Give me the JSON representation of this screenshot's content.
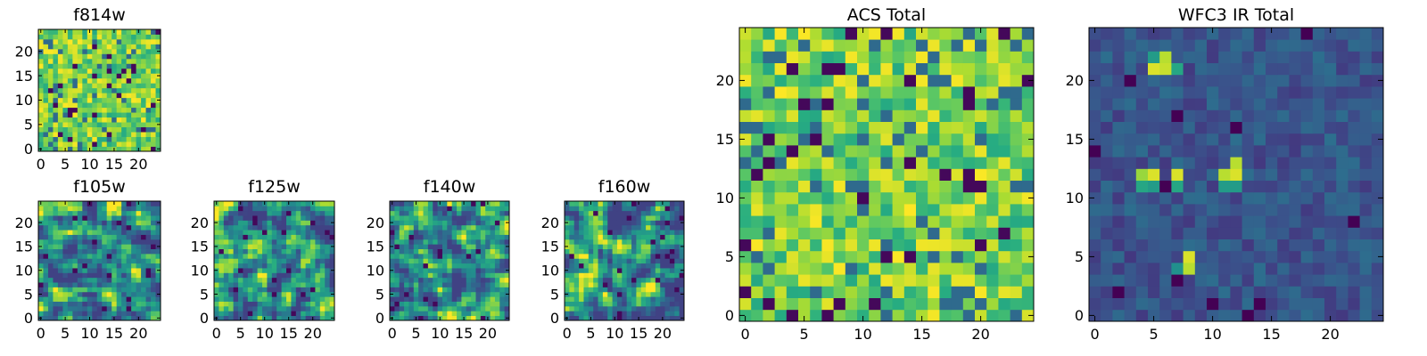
{
  "chart_data": [
    {
      "type": "heatmap",
      "title": "f814w",
      "colormap": "viridis",
      "grid": false,
      "xlim": [
        -0.5,
        24.5
      ],
      "ylim": [
        -0.5,
        24.5
      ],
      "xticks": [
        0,
        5,
        10,
        15,
        20
      ],
      "yticks": [
        0,
        5,
        10,
        15,
        20
      ],
      "size": 25,
      "seed": 11,
      "value_range": [
        0,
        1
      ],
      "texture": "pixel-noise"
    },
    {
      "type": "heatmap",
      "title": "f105w",
      "colormap": "viridis",
      "grid": false,
      "xlim": [
        -0.5,
        24.5
      ],
      "ylim": [
        -0.5,
        24.5
      ],
      "xticks": [
        0,
        5,
        10,
        15,
        20
      ],
      "yticks": [
        0,
        5,
        10,
        15,
        20
      ],
      "size": 25,
      "seed": 23,
      "value_range": [
        0,
        1
      ],
      "texture": "smooth-noise"
    },
    {
      "type": "heatmap",
      "title": "f125w",
      "colormap": "viridis",
      "grid": false,
      "xlim": [
        -0.5,
        24.5
      ],
      "ylim": [
        -0.5,
        24.5
      ],
      "xticks": [
        0,
        5,
        10,
        15,
        20
      ],
      "yticks": [
        0,
        5,
        10,
        15,
        20
      ],
      "size": 25,
      "seed": 37,
      "value_range": [
        0,
        1
      ],
      "texture": "smooth-noise"
    },
    {
      "type": "heatmap",
      "title": "f140w",
      "colormap": "viridis",
      "grid": false,
      "xlim": [
        -0.5,
        24.5
      ],
      "ylim": [
        -0.5,
        24.5
      ],
      "xticks": [
        0,
        5,
        10,
        15,
        20
      ],
      "yticks": [
        0,
        5,
        10,
        15,
        20
      ],
      "size": 25,
      "seed": 41,
      "value_range": [
        0,
        1
      ],
      "texture": "smooth-noise"
    },
    {
      "type": "heatmap",
      "title": "f160w",
      "colormap": "viridis",
      "grid": false,
      "xlim": [
        -0.5,
        24.5
      ],
      "ylim": [
        -0.5,
        24.5
      ],
      "xticks": [
        0,
        5,
        10,
        15,
        20
      ],
      "yticks": [
        0,
        5,
        10,
        15,
        20
      ],
      "size": 25,
      "seed": 53,
      "value_range": [
        0,
        1
      ],
      "texture": "smooth-noise"
    },
    {
      "type": "heatmap",
      "title": "ACS Total",
      "colormap": "viridis",
      "grid": false,
      "xlim": [
        -0.5,
        24.5
      ],
      "ylim": [
        -0.5,
        24.5
      ],
      "xticks": [
        0,
        5,
        10,
        15,
        20
      ],
      "yticks": [
        0,
        5,
        10,
        15,
        20
      ],
      "size": 25,
      "seed": 67,
      "value_range": [
        0,
        1
      ],
      "texture": "pixel-noise"
    },
    {
      "type": "heatmap",
      "title": "WFC3 IR Total",
      "colormap": "viridis",
      "grid": false,
      "xlim": [
        -0.5,
        24.5
      ],
      "ylim": [
        -0.5,
        24.5
      ],
      "xticks": [
        0,
        5,
        10,
        15,
        20
      ],
      "yticks": [
        0,
        5,
        10,
        15,
        20
      ],
      "size": 25,
      "seed": 79,
      "value_range": [
        0,
        1
      ],
      "texture": "dark-background",
      "bright_pixels": [
        {
          "x": 5,
          "y": 21,
          "value": 0.95
        },
        {
          "x": 6,
          "y": 21,
          "value": 0.92
        },
        {
          "x": 6,
          "y": 22,
          "value": 0.9
        },
        {
          "x": 5,
          "y": 22,
          "value": 0.55
        },
        {
          "x": 7,
          "y": 21,
          "value": 0.6
        },
        {
          "x": 4,
          "y": 12,
          "value": 0.85
        },
        {
          "x": 5,
          "y": 12,
          "value": 0.95
        },
        {
          "x": 4,
          "y": 11,
          "value": 0.6
        },
        {
          "x": 5,
          "y": 11,
          "value": 0.55
        },
        {
          "x": 7,
          "y": 12,
          "value": 0.95
        },
        {
          "x": 7,
          "y": 11,
          "value": 0.6
        },
        {
          "x": 11,
          "y": 12,
          "value": 0.9
        },
        {
          "x": 12,
          "y": 12,
          "value": 0.95
        },
        {
          "x": 12,
          "y": 13,
          "value": 0.9
        },
        {
          "x": 11,
          "y": 11,
          "value": 0.55
        },
        {
          "x": 12,
          "y": 11,
          "value": 0.55
        },
        {
          "x": 8,
          "y": 5,
          "value": 0.95
        },
        {
          "x": 8,
          "y": 4,
          "value": 0.9
        },
        {
          "x": 7,
          "y": 4,
          "value": 0.5
        }
      ],
      "dark_pixels": [
        {
          "x": 18,
          "y": 24
        },
        {
          "x": 3,
          "y": 20
        },
        {
          "x": 7,
          "y": 17
        },
        {
          "x": 0,
          "y": 14
        },
        {
          "x": 12,
          "y": 16
        },
        {
          "x": 7,
          "y": 3
        },
        {
          "x": 2,
          "y": 2
        },
        {
          "x": 10,
          "y": 1
        },
        {
          "x": 14,
          "y": 1
        },
        {
          "x": 13,
          "y": 0
        },
        {
          "x": 22,
          "y": 8
        },
        {
          "x": 6,
          "y": 11
        }
      ]
    }
  ]
}
